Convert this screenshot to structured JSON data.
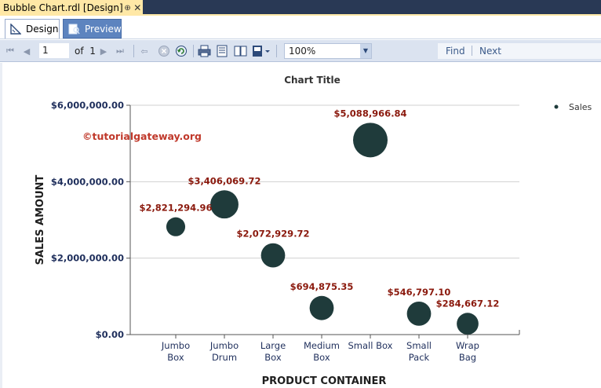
{
  "document_tab": {
    "title": "Bubble Chart.rdl [Design]",
    "pin_glyph": "⊕",
    "close_glyph": "✕"
  },
  "view_tabs": [
    {
      "label": "Design",
      "icon": "design-ruler-icon",
      "active": true
    },
    {
      "label": "Preview",
      "icon": "preview-icon",
      "active": false
    }
  ],
  "toolbar": {
    "page_value": "1",
    "of_label": "of",
    "page_total": "1",
    "zoom_value": "100%",
    "find_label": "Find",
    "next_label": "Next"
  },
  "colors": {
    "bubble": "#1f3b3b",
    "data_label": "#8b1a0e",
    "axis_label": "#1f2f5c",
    "watermark": "#c0392b",
    "gridline": "#d0d0d0"
  },
  "watermark": "©tutorialgateway.org",
  "chart_data": {
    "type": "scatter",
    "subtype": "bubble",
    "title": "Chart Title",
    "xlabel": "PRODUCT CONTAINER",
    "ylabel": "SALES AMOUNT",
    "ylim": [
      0,
      6000000
    ],
    "yticks": [
      "$0.00",
      "$2,000,000.00",
      "$4,000,000.00",
      "$6,000,000.00"
    ],
    "ytick_values": [
      0,
      2000000,
      4000000,
      6000000
    ],
    "grid": true,
    "legend_position": "top-right",
    "series": [
      {
        "name": "Sales",
        "points": [
          {
            "category": [
              "Jumbo",
              "Box"
            ],
            "value": 2821294.96,
            "label": "$2,821,294.96",
            "size": 1
          },
          {
            "category": [
              "Jumbo",
              "Drum"
            ],
            "value": 3406069.72,
            "label": "$3,406,069.72",
            "size": 3
          },
          {
            "category": [
              "Large",
              "Box"
            ],
            "value": 2072929.72,
            "label": "$2,072,929.72",
            "size": 2
          },
          {
            "category": [
              "Medium",
              "Box"
            ],
            "value": 694875.35,
            "label": "$694,875.35",
            "size": 2
          },
          {
            "category": [
              "Small Box"
            ],
            "value": 5088966.84,
            "label": "$5,088,966.84",
            "size": 5
          },
          {
            "category": [
              "Small",
              "Pack"
            ],
            "value": 546797.1,
            "label": "$546,797.10",
            "size": 2
          },
          {
            "category": [
              "Wrap",
              "Bag"
            ],
            "value": 284667.12,
            "label": "$284,667.12",
            "size": 1.5
          }
        ]
      }
    ]
  }
}
